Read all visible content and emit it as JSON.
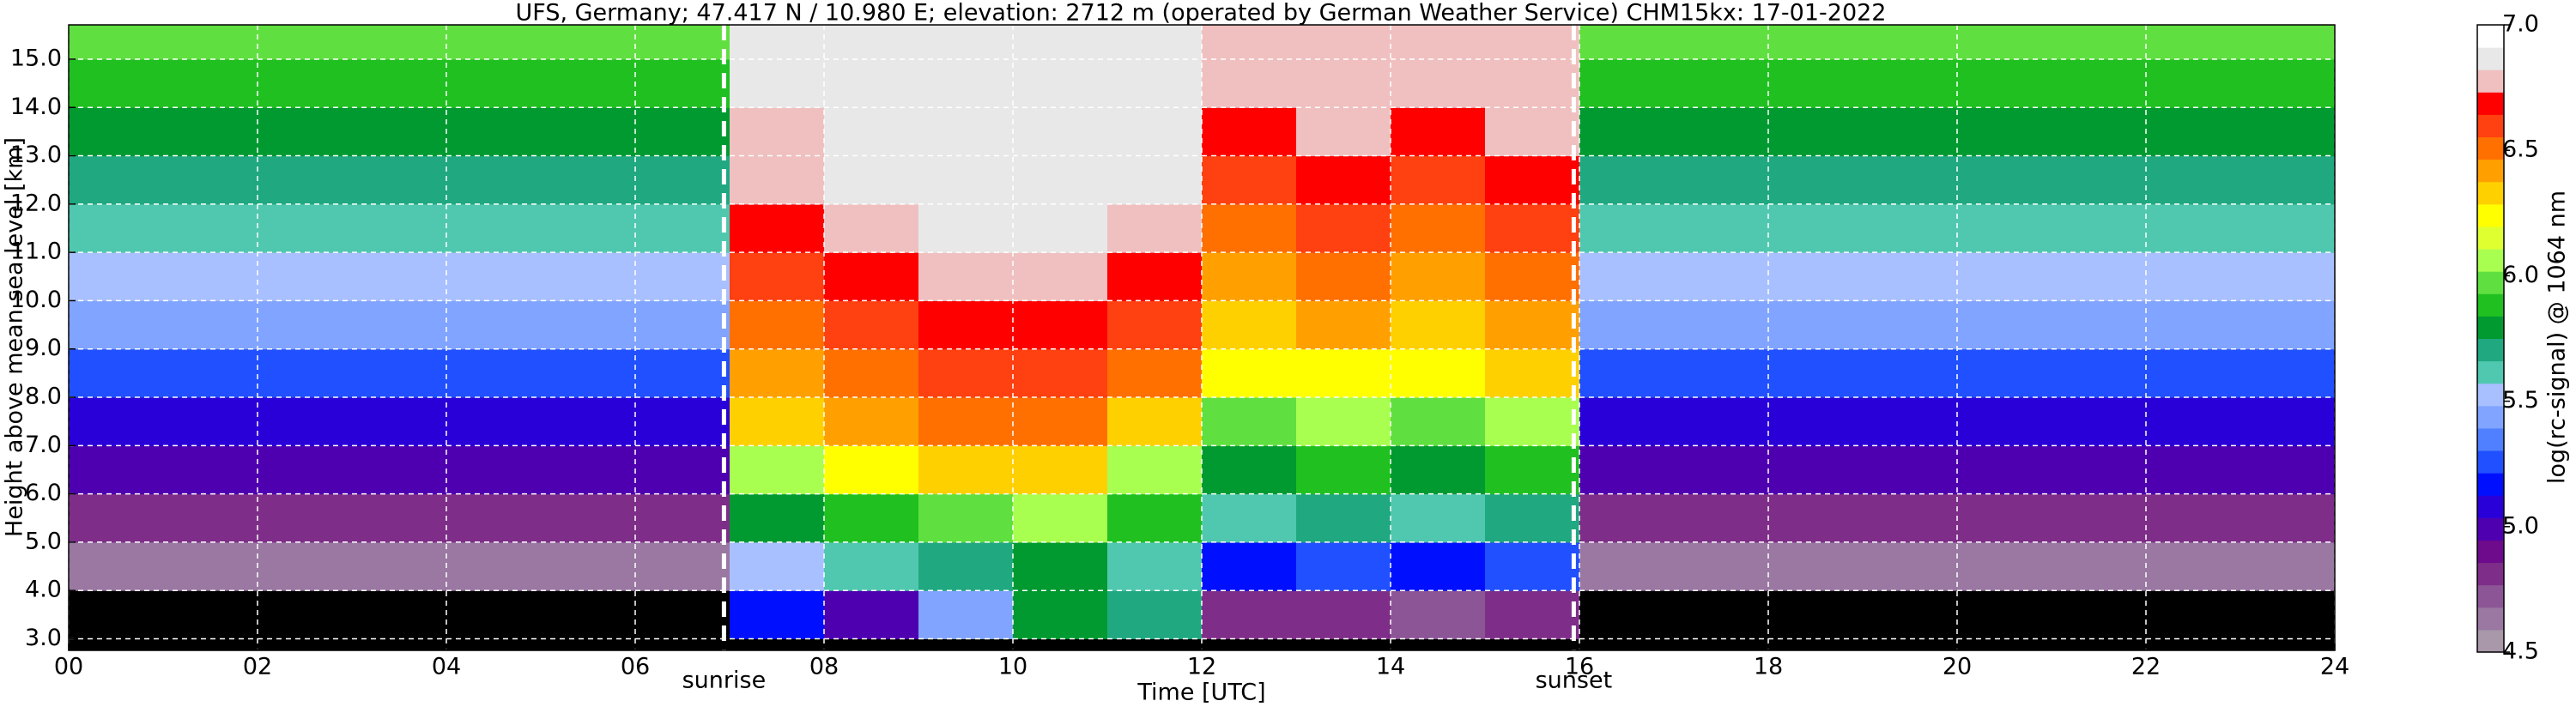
{
  "chart_data": {
    "type": "heatmap",
    "title": "UFS, Germany; 47.417 N / 10.980 E; elevation: 2712 m  (operated by German Weather Service)    CHM15kx: 17-01-2022",
    "x_label": "Time [UTC]",
    "y_label": "Height above mean sea level [km]",
    "colorbar_label": "log(rc-signal) @ 1064 nm",
    "xlim": [
      0,
      24
    ],
    "ylim": [
      2.76,
      15.71
    ],
    "xticks": [
      {
        "value": 0,
        "label": "00"
      },
      {
        "value": 2,
        "label": "02"
      },
      {
        "value": 4,
        "label": "04"
      },
      {
        "value": 6,
        "label": "06"
      },
      {
        "value": 8,
        "label": "08"
      },
      10,
      12,
      14,
      16,
      18,
      20,
      22,
      24
    ],
    "yticks": [
      {
        "value": 3,
        "label": "3.0"
      },
      {
        "value": 4,
        "label": "4.0"
      },
      {
        "value": 5,
        "label": "5.0"
      },
      {
        "value": 6,
        "label": "6.0"
      },
      {
        "value": 7,
        "label": "7.0"
      },
      {
        "value": 8,
        "label": "8.0"
      },
      {
        "value": 9,
        "label": "9.0"
      },
      {
        "value": 10,
        "label": "10.0"
      },
      {
        "value": 11,
        "label": "11.0"
      },
      {
        "value": 12,
        "label": "12.0"
      },
      {
        "value": 13,
        "label": "13.0"
      },
      {
        "value": 14,
        "label": "14.0"
      },
      {
        "value": 15,
        "label": "15.0"
      }
    ],
    "grid": true,
    "grid_color": "#ffffff",
    "xbins": [
      0,
      1,
      2,
      3,
      4,
      5,
      6,
      7,
      8,
      9,
      10,
      11,
      12,
      13,
      14,
      15,
      16,
      17,
      18,
      19,
      20,
      21,
      22,
      23,
      24
    ],
    "ybins": [
      3,
      4,
      5,
      6,
      7,
      8,
      9,
      10,
      11,
      12,
      13,
      14,
      15,
      16
    ],
    "z": [
      [
        4.3,
        4.3,
        4.3,
        4.3,
        4.3,
        4.3,
        4.3,
        5.2,
        5.0,
        5.4,
        5.8,
        5.7,
        4.8,
        4.8,
        4.7,
        4.8,
        4.3,
        4.3,
        4.3,
        4.3,
        4.3,
        4.3,
        4.3,
        4.3
      ],
      [
        4.6,
        4.6,
        4.6,
        4.6,
        4.6,
        4.6,
        4.6,
        5.5,
        5.6,
        5.7,
        5.8,
        5.6,
        5.2,
        5.3,
        5.2,
        5.3,
        4.6,
        4.6,
        4.6,
        4.6,
        4.6,
        4.6,
        4.6,
        4.6
      ],
      [
        4.8,
        4.8,
        4.8,
        4.8,
        4.8,
        4.8,
        4.8,
        5.8,
        5.9,
        6.0,
        6.1,
        5.9,
        5.6,
        5.7,
        5.6,
        5.7,
        4.8,
        4.8,
        4.8,
        4.8,
        4.8,
        4.8,
        4.8,
        4.8
      ],
      [
        5.0,
        5.0,
        5.0,
        5.0,
        5.0,
        5.0,
        5.0,
        6.1,
        6.2,
        6.3,
        6.3,
        6.1,
        5.8,
        5.9,
        5.8,
        5.9,
        5.0,
        5.0,
        5.0,
        5.0,
        5.0,
        5.0,
        5.0,
        5.0
      ],
      [
        5.1,
        5.1,
        5.1,
        5.1,
        5.1,
        5.1,
        5.1,
        6.3,
        6.4,
        6.5,
        6.5,
        6.3,
        6.0,
        6.1,
        6.0,
        6.1,
        5.1,
        5.1,
        5.1,
        5.1,
        5.1,
        5.1,
        5.1,
        5.1
      ],
      [
        5.3,
        5.3,
        5.3,
        5.3,
        5.3,
        5.3,
        5.3,
        6.4,
        6.5,
        6.6,
        6.6,
        6.5,
        6.2,
        6.2,
        6.2,
        6.3,
        5.3,
        5.3,
        5.3,
        5.3,
        5.3,
        5.3,
        5.3,
        5.3
      ],
      [
        5.4,
        5.4,
        5.4,
        5.4,
        5.4,
        5.4,
        5.4,
        6.5,
        6.6,
        6.7,
        6.7,
        6.6,
        6.3,
        6.4,
        6.3,
        6.4,
        5.4,
        5.4,
        5.4,
        5.4,
        5.4,
        5.4,
        5.4,
        5.4
      ],
      [
        5.5,
        5.5,
        5.5,
        5.5,
        5.5,
        5.5,
        5.5,
        6.6,
        6.7,
        6.8,
        6.8,
        6.7,
        6.4,
        6.5,
        6.4,
        6.5,
        5.5,
        5.5,
        5.5,
        5.5,
        5.5,
        5.5,
        5.5,
        5.5
      ],
      [
        5.6,
        5.6,
        5.6,
        5.6,
        5.6,
        5.6,
        5.6,
        6.7,
        6.8,
        6.9,
        6.9,
        6.8,
        6.5,
        6.6,
        6.5,
        6.6,
        5.6,
        5.6,
        5.6,
        5.6,
        5.6,
        5.6,
        5.6,
        5.6
      ],
      [
        5.7,
        5.7,
        5.7,
        5.7,
        5.7,
        5.7,
        5.7,
        6.8,
        6.9,
        6.9,
        6.9,
        6.9,
        6.6,
        6.7,
        6.6,
        6.7,
        5.7,
        5.7,
        5.7,
        5.7,
        5.7,
        5.7,
        5.7,
        5.7
      ],
      [
        5.8,
        5.8,
        5.8,
        5.8,
        5.8,
        5.8,
        5.8,
        6.8,
        6.9,
        6.9,
        6.9,
        6.9,
        6.7,
        6.8,
        6.7,
        6.8,
        5.8,
        5.8,
        5.8,
        5.8,
        5.8,
        5.8,
        5.8,
        5.8
      ],
      [
        5.9,
        5.9,
        5.9,
        5.9,
        5.9,
        5.9,
        5.9,
        6.9,
        6.9,
        6.9,
        6.9,
        6.9,
        6.8,
        6.8,
        6.8,
        6.8,
        5.9,
        5.9,
        5.9,
        5.9,
        5.9,
        5.9,
        5.9,
        5.9
      ],
      [
        5.95,
        5.95,
        5.95,
        5.95,
        5.95,
        5.95,
        5.95,
        6.9,
        6.9,
        6.9,
        6.9,
        6.9,
        6.8,
        6.8,
        6.8,
        6.8,
        5.95,
        5.95,
        5.95,
        5.95,
        5.95,
        5.95,
        5.95,
        5.95
      ]
    ],
    "clim": [
      4.5,
      7.0
    ],
    "under_color": "#000000",
    "colormap": [
      "#a898aa",
      "#9a78a2",
      "#8c5696",
      "#7e2e88",
      "#6e0a8c",
      "#4e00b0",
      "#2a00d8",
      "#0010ff",
      "#2050ff",
      "#5080ff",
      "#80a4ff",
      "#a8c0ff",
      "#50c8b0",
      "#20a880",
      "#009a30",
      "#20c020",
      "#60e040",
      "#a8ff50",
      "#e0ff30",
      "#ffff00",
      "#ffd000",
      "#ffa000",
      "#ff7000",
      "#ff4010",
      "#ff0000",
      "#f0c0c0",
      "#e8e8e8",
      "#ffffff"
    ],
    "colorbar_ticks": [
      {
        "value": 4.5,
        "label": "4.5"
      },
      {
        "value": 5.0,
        "label": "5.0"
      },
      {
        "value": 5.5,
        "label": "5.5"
      },
      {
        "value": 6.0,
        "label": "6.0"
      },
      {
        "value": 6.5,
        "label": "6.5"
      },
      {
        "value": 7.0,
        "label": "7.0"
      }
    ],
    "annotations": [
      {
        "text": "sunrise",
        "x": 6.94
      },
      {
        "text": "sunset",
        "x": 15.94
      }
    ]
  }
}
